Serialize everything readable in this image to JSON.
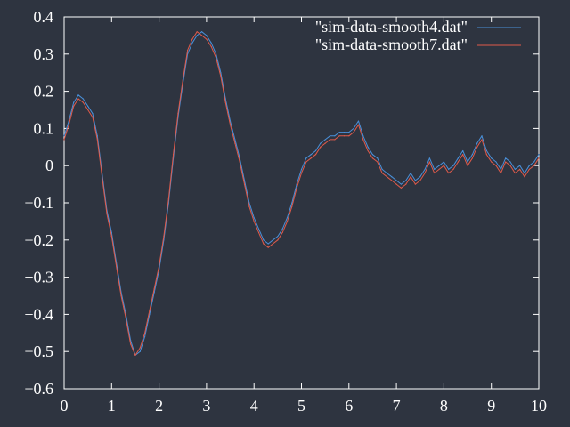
{
  "chart_data": {
    "type": "line",
    "background": "#2e3440",
    "xlim": [
      0,
      10
    ],
    "ylim": [
      -0.6,
      0.4
    ],
    "x_ticks": [
      "0",
      "1",
      "2",
      "3",
      "4",
      "5",
      "6",
      "7",
      "8",
      "9",
      "10"
    ],
    "y_ticks": [
      "0.4",
      "0.3",
      "0.2",
      "0.1",
      "0",
      "−0.1",
      "−0.2",
      "−0.3",
      "−0.4",
      "−0.5",
      "−0.6"
    ],
    "grid": false,
    "legend_position": "top-right",
    "series": [
      {
        "name": "\"sim-data-smooth4.dat\"",
        "color": "#4a90d9",
        "x": [
          0,
          0.1,
          0.2,
          0.3,
          0.4,
          0.5,
          0.6,
          0.7,
          0.8,
          0.9,
          1.0,
          1.1,
          1.2,
          1.3,
          1.4,
          1.5,
          1.6,
          1.7,
          1.8,
          1.9,
          2.0,
          2.1,
          2.2,
          2.3,
          2.4,
          2.5,
          2.6,
          2.7,
          2.8,
          2.9,
          3.0,
          3.1,
          3.2,
          3.3,
          3.4,
          3.5,
          3.6,
          3.7,
          3.8,
          3.9,
          4.0,
          4.1,
          4.2,
          4.3,
          4.4,
          4.5,
          4.6,
          4.7,
          4.8,
          4.9,
          5.0,
          5.1,
          5.2,
          5.3,
          5.4,
          5.5,
          5.6,
          5.7,
          5.8,
          5.9,
          6.0,
          6.1,
          6.2,
          6.3,
          6.4,
          6.5,
          6.6,
          6.7,
          6.8,
          6.9,
          7.0,
          7.1,
          7.2,
          7.3,
          7.4,
          7.5,
          7.6,
          7.7,
          7.8,
          7.9,
          8.0,
          8.1,
          8.2,
          8.3,
          8.4,
          8.5,
          8.6,
          8.7,
          8.8,
          8.9,
          9.0,
          9.1,
          9.2,
          9.3,
          9.4,
          9.5,
          9.6,
          9.7,
          9.8,
          9.9,
          10.0
        ],
        "y": [
          0.08,
          0.12,
          0.17,
          0.19,
          0.18,
          0.16,
          0.14,
          0.08,
          -0.02,
          -0.12,
          -0.18,
          -0.26,
          -0.34,
          -0.4,
          -0.47,
          -0.51,
          -0.5,
          -0.46,
          -0.4,
          -0.34,
          -0.28,
          -0.2,
          -0.1,
          0.02,
          0.13,
          0.22,
          0.3,
          0.33,
          0.35,
          0.36,
          0.35,
          0.33,
          0.3,
          0.25,
          0.18,
          0.12,
          0.07,
          0.02,
          -0.04,
          -0.1,
          -0.14,
          -0.17,
          -0.2,
          -0.21,
          -0.2,
          -0.19,
          -0.17,
          -0.14,
          -0.1,
          -0.05,
          -0.01,
          0.02,
          0.03,
          0.04,
          0.06,
          0.07,
          0.08,
          0.08,
          0.09,
          0.09,
          0.09,
          0.1,
          0.12,
          0.08,
          0.05,
          0.03,
          0.02,
          -0.01,
          -0.02,
          -0.03,
          -0.04,
          -0.05,
          -0.04,
          -0.02,
          -0.04,
          -0.03,
          -0.01,
          0.02,
          -0.01,
          0.0,
          0.01,
          -0.01,
          0.0,
          0.02,
          0.04,
          0.01,
          0.03,
          0.06,
          0.08,
          0.04,
          0.02,
          0.01,
          -0.01,
          0.02,
          0.01,
          -0.01,
          0.0,
          -0.02,
          0.0,
          0.01,
          0.03
        ]
      },
      {
        "name": "\"sim-data-smooth7.dat\"",
        "color": "#e05a4a",
        "x": [
          0,
          0.1,
          0.2,
          0.3,
          0.4,
          0.5,
          0.6,
          0.7,
          0.8,
          0.9,
          1.0,
          1.1,
          1.2,
          1.3,
          1.4,
          1.5,
          1.6,
          1.7,
          1.8,
          1.9,
          2.0,
          2.1,
          2.2,
          2.3,
          2.4,
          2.5,
          2.6,
          2.7,
          2.8,
          2.9,
          3.0,
          3.1,
          3.2,
          3.3,
          3.4,
          3.5,
          3.6,
          3.7,
          3.8,
          3.9,
          4.0,
          4.1,
          4.2,
          4.3,
          4.4,
          4.5,
          4.6,
          4.7,
          4.8,
          4.9,
          5.0,
          5.1,
          5.2,
          5.3,
          5.4,
          5.5,
          5.6,
          5.7,
          5.8,
          5.9,
          6.0,
          6.1,
          6.2,
          6.3,
          6.4,
          6.5,
          6.6,
          6.7,
          6.8,
          6.9,
          7.0,
          7.1,
          7.2,
          7.3,
          7.4,
          7.5,
          7.6,
          7.7,
          7.8,
          7.9,
          8.0,
          8.1,
          8.2,
          8.3,
          8.4,
          8.5,
          8.6,
          8.7,
          8.8,
          8.9,
          9.0,
          9.1,
          9.2,
          9.3,
          9.4,
          9.5,
          9.6,
          9.7,
          9.8,
          9.9,
          10.0
        ],
        "y": [
          0.07,
          0.11,
          0.16,
          0.18,
          0.17,
          0.15,
          0.13,
          0.07,
          -0.03,
          -0.13,
          -0.19,
          -0.27,
          -0.35,
          -0.41,
          -0.48,
          -0.51,
          -0.49,
          -0.45,
          -0.39,
          -0.33,
          -0.27,
          -0.19,
          -0.09,
          0.03,
          0.14,
          0.23,
          0.31,
          0.34,
          0.36,
          0.35,
          0.34,
          0.32,
          0.29,
          0.24,
          0.17,
          0.11,
          0.06,
          0.01,
          -0.05,
          -0.11,
          -0.15,
          -0.18,
          -0.21,
          -0.22,
          -0.21,
          -0.2,
          -0.18,
          -0.15,
          -0.11,
          -0.06,
          -0.02,
          0.01,
          0.02,
          0.03,
          0.05,
          0.06,
          0.07,
          0.07,
          0.08,
          0.08,
          0.08,
          0.09,
          0.11,
          0.07,
          0.04,
          0.02,
          0.01,
          -0.02,
          -0.03,
          -0.04,
          -0.05,
          -0.06,
          -0.05,
          -0.03,
          -0.05,
          -0.04,
          -0.02,
          0.01,
          -0.02,
          -0.01,
          0.0,
          -0.02,
          -0.01,
          0.01,
          0.03,
          0.0,
          0.02,
          0.05,
          0.07,
          0.03,
          0.01,
          0.0,
          -0.02,
          0.01,
          0.0,
          -0.02,
          -0.01,
          -0.03,
          -0.01,
          0.0,
          0.02
        ]
      }
    ]
  }
}
